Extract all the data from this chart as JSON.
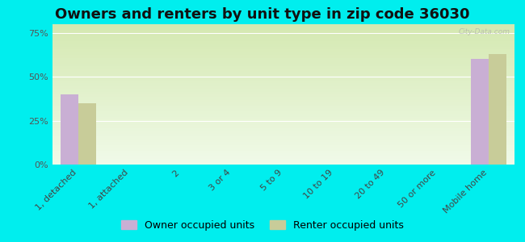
{
  "title": "Owners and renters by unit type in zip code 36030",
  "categories": [
    "1, detached",
    "1, attached",
    "2",
    "3 or 4",
    "5 to 9",
    "10 to 19",
    "20 to 49",
    "50 or more",
    "Mobile home"
  ],
  "owner_values": [
    40,
    0,
    0,
    0,
    0,
    0,
    0,
    0,
    60
  ],
  "renter_values": [
    35,
    0,
    0,
    0,
    0,
    0,
    0,
    0,
    63
  ],
  "owner_color": "#c9afd4",
  "renter_color": "#c8cc99",
  "background_color": "#00eeee",
  "plot_bg_top": "#d4e8b0",
  "plot_bg_bottom": "#eef8e0",
  "yticks": [
    0,
    25,
    50,
    75
  ],
  "ylim": [
    0,
    80
  ],
  "bar_width": 0.35,
  "title_fontsize": 13,
  "tick_fontsize": 8,
  "legend_fontsize": 9,
  "watermark": "City-Data.com"
}
